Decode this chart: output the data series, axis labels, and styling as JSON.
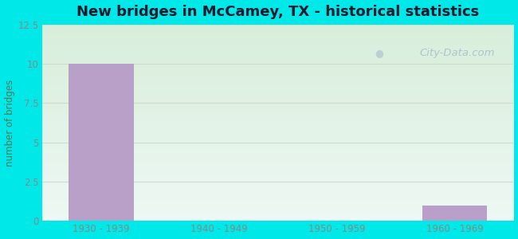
{
  "title": "New bridges in McCamey, TX - historical statistics",
  "categories": [
    "1930 - 1939",
    "1940 - 1949",
    "1950 - 1959",
    "1960 - 1969"
  ],
  "values": [
    10,
    0,
    0,
    1
  ],
  "bar_color": "#b8a0c8",
  "ylabel": "number of bridges",
  "ylim": [
    0,
    12.5
  ],
  "yticks": [
    0,
    2.5,
    5,
    7.5,
    10,
    12.5
  ],
  "background_outer": "#00e8e8",
  "background_plot_top_left": "#d8eeda",
  "background_plot_bottom_right": "#eef8f4",
  "title_fontsize": 13,
  "title_color": "#1a1a2e",
  "ylabel_color": "#557755",
  "tick_color": "#888888",
  "grid_color": "#ccddcc",
  "watermark": "City-Data.com",
  "watermark_color": "#aabbcc"
}
